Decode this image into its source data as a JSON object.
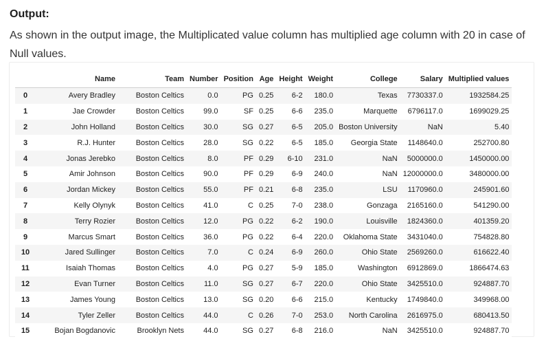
{
  "heading": "Output:",
  "description": "As shown in the output image, the Multiplicated value column has multiplied age column with 20 in case of Null values.",
  "table": {
    "columns": [
      "",
      "Name",
      "Team",
      "Number",
      "Position",
      "Age",
      "Height",
      "Weight",
      "College",
      "Salary",
      "Multiplied values"
    ],
    "rows": [
      [
        "0",
        "Avery Bradley",
        "Boston Celtics",
        "0.0",
        "PG",
        "0.25",
        "6-2",
        "180.0",
        "Texas",
        "7730337.0",
        "1932584.25"
      ],
      [
        "1",
        "Jae Crowder",
        "Boston Celtics",
        "99.0",
        "SF",
        "0.25",
        "6-6",
        "235.0",
        "Marquette",
        "6796117.0",
        "1699029.25"
      ],
      [
        "2",
        "John Holland",
        "Boston Celtics",
        "30.0",
        "SG",
        "0.27",
        "6-5",
        "205.0",
        "Boston University",
        "NaN",
        "5.40"
      ],
      [
        "3",
        "R.J. Hunter",
        "Boston Celtics",
        "28.0",
        "SG",
        "0.22",
        "6-5",
        "185.0",
        "Georgia State",
        "1148640.0",
        "252700.80"
      ],
      [
        "4",
        "Jonas Jerebko",
        "Boston Celtics",
        "8.0",
        "PF",
        "0.29",
        "6-10",
        "231.0",
        "NaN",
        "5000000.0",
        "1450000.00"
      ],
      [
        "5",
        "Amir Johnson",
        "Boston Celtics",
        "90.0",
        "PF",
        "0.29",
        "6-9",
        "240.0",
        "NaN",
        "12000000.0",
        "3480000.00"
      ],
      [
        "6",
        "Jordan Mickey",
        "Boston Celtics",
        "55.0",
        "PF",
        "0.21",
        "6-8",
        "235.0",
        "LSU",
        "1170960.0",
        "245901.60"
      ],
      [
        "7",
        "Kelly Olynyk",
        "Boston Celtics",
        "41.0",
        "C",
        "0.25",
        "7-0",
        "238.0",
        "Gonzaga",
        "2165160.0",
        "541290.00"
      ],
      [
        "8",
        "Terry Rozier",
        "Boston Celtics",
        "12.0",
        "PG",
        "0.22",
        "6-2",
        "190.0",
        "Louisville",
        "1824360.0",
        "401359.20"
      ],
      [
        "9",
        "Marcus Smart",
        "Boston Celtics",
        "36.0",
        "PG",
        "0.22",
        "6-4",
        "220.0",
        "Oklahoma State",
        "3431040.0",
        "754828.80"
      ],
      [
        "10",
        "Jared Sullinger",
        "Boston Celtics",
        "7.0",
        "C",
        "0.24",
        "6-9",
        "260.0",
        "Ohio State",
        "2569260.0",
        "616622.40"
      ],
      [
        "11",
        "Isaiah Thomas",
        "Boston Celtics",
        "4.0",
        "PG",
        "0.27",
        "5-9",
        "185.0",
        "Washington",
        "6912869.0",
        "1866474.63"
      ],
      [
        "12",
        "Evan Turner",
        "Boston Celtics",
        "11.0",
        "SG",
        "0.27",
        "6-7",
        "220.0",
        "Ohio State",
        "3425510.0",
        "924887.70"
      ],
      [
        "13",
        "James Young",
        "Boston Celtics",
        "13.0",
        "SG",
        "0.20",
        "6-6",
        "215.0",
        "Kentucky",
        "1749840.0",
        "349968.00"
      ],
      [
        "14",
        "Tyler Zeller",
        "Boston Celtics",
        "44.0",
        "C",
        "0.26",
        "7-0",
        "253.0",
        "North Carolina",
        "2616975.0",
        "680413.50"
      ],
      [
        "15",
        "Bojan Bogdanovic",
        "Brooklyn Nets",
        "44.0",
        "SG",
        "0.27",
        "6-8",
        "216.0",
        "NaN",
        "3425510.0",
        "924887.70"
      ]
    ]
  }
}
